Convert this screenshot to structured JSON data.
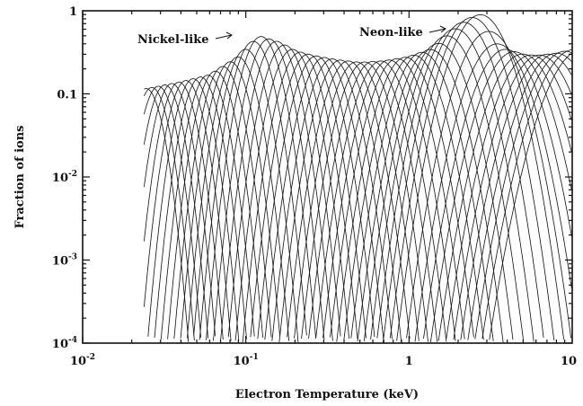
{
  "chart_data": {
    "type": "line",
    "title": "",
    "xlabel": "Electron Temperature (keV)",
    "ylabel": "Fraction of ions",
    "x_scale": "log",
    "y_scale": "log",
    "xlim": [
      0.01,
      10
    ],
    "ylim": [
      0.0001,
      1
    ],
    "grid": false,
    "x_tick_labels": [
      {
        "value": 0.01,
        "base": "10",
        "exp": "-2"
      },
      {
        "value": 0.1,
        "base": "10",
        "exp": "-1"
      },
      {
        "value": 1,
        "base": "1",
        "exp": ""
      },
      {
        "value": 10,
        "base": "10",
        "exp": ""
      }
    ],
    "y_tick_labels": [
      {
        "value": 1,
        "base": "1",
        "exp": ""
      },
      {
        "value": 0.1,
        "base": "0.1",
        "exp": ""
      },
      {
        "value": 0.01,
        "base": "10",
        "exp": "-2"
      },
      {
        "value": 0.001,
        "base": "10",
        "exp": "-3"
      },
      {
        "value": 0.0001,
        "base": "10",
        "exp": "-4"
      }
    ],
    "annotations": [
      {
        "text": "Nickel-like",
        "x": 0.11,
        "y": 0.6
      },
      {
        "text": "Neon-like",
        "x": 1.4,
        "y": 0.75
      }
    ],
    "series_description": "ionization-stage fractions",
    "envelope": {
      "x": [
        0.024,
        0.03,
        0.04,
        0.06,
        0.09,
        0.12,
        0.16,
        0.2,
        0.26,
        0.35,
        0.5,
        0.7,
        1.0,
        1.4,
        1.8,
        2.3,
        2.75,
        3.1,
        3.6,
        4.2,
        5,
        6,
        7,
        8.2,
        9.8
      ],
      "y": [
        0.115,
        0.125,
        0.14,
        0.17,
        0.28,
        0.5,
        0.42,
        0.33,
        0.29,
        0.26,
        0.24,
        0.25,
        0.28,
        0.35,
        0.55,
        0.8,
        0.9,
        0.55,
        0.36,
        0.33,
        0.3,
        0.29,
        0.3,
        0.31,
        0.34
      ]
    },
    "curve_count": 56
  }
}
